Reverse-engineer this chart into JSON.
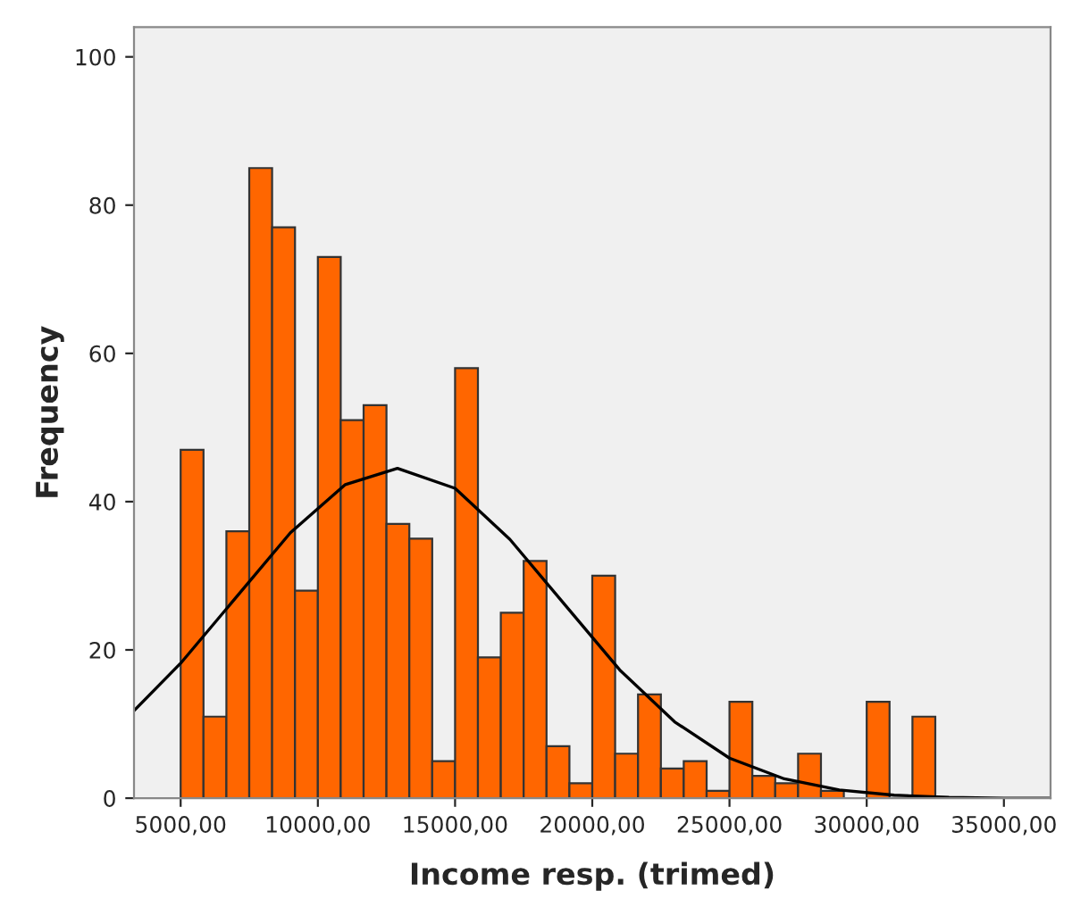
{
  "chart_data": {
    "type": "histogram",
    "xlabel": "Income resp. (trimed)",
    "ylabel": "Frequency",
    "color": "#ff6600",
    "bins": [
      5000,
      5833,
      6667,
      7500,
      8333,
      9167,
      10000,
      10833,
      11667,
      12500,
      13333,
      14167,
      15000,
      15833,
      16667,
      17500,
      18333,
      19167,
      20000,
      20833,
      21667,
      22500,
      23333,
      24167,
      25000,
      25833,
      26667,
      27500,
      28333,
      29167,
      30000,
      30833,
      31667,
      32500
    ],
    "values": [
      47,
      11,
      36,
      85,
      77,
      28,
      73,
      51,
      53,
      37,
      35,
      5,
      58,
      19,
      25,
      32,
      7,
      2,
      30,
      6,
      14,
      4,
      5,
      1,
      13,
      3,
      2,
      6,
      1,
      0,
      13,
      0,
      11
    ],
    "series": [
      {
        "type": "line",
        "color": "#000000",
        "x": [
          3300,
          5000,
          7000,
          9000,
          11000,
          12900,
          15000,
          17000,
          19000,
          21000,
          23000,
          25000,
          27000,
          29000,
          31000,
          33000,
          35000,
          36700
        ],
        "values": [
          11.8,
          18.2,
          27.0,
          35.8,
          42.3,
          44.5,
          41.8,
          34.9,
          26.1,
          17.3,
          10.3,
          5.4,
          2.6,
          1.1,
          0.4,
          0.1,
          0,
          0
        ]
      }
    ],
    "xlim": [
      3300,
      36700
    ],
    "ylim": [
      0,
      104
    ],
    "xticks": [
      {
        "value": 5000,
        "label": "5000,00"
      },
      {
        "value": 10000,
        "label": "10000,00"
      },
      {
        "value": 15000,
        "label": "15000,00"
      },
      {
        "value": 20000,
        "label": "20000,00"
      },
      {
        "value": 25000,
        "label": "25000,00"
      },
      {
        "value": 30000,
        "label": "30000,00"
      },
      {
        "value": 35000,
        "label": "35000,00"
      }
    ],
    "yticks": [
      0,
      20,
      40,
      60,
      80,
      100
    ],
    "grid": false,
    "legend": false
  }
}
